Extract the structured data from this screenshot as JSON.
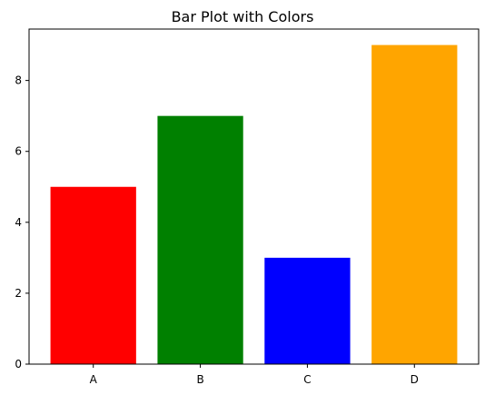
{
  "chart_data": {
    "type": "bar",
    "title": "Bar Plot with Colors",
    "categories": [
      "A",
      "B",
      "C",
      "D"
    ],
    "values": [
      5,
      7,
      3,
      9
    ],
    "colors": [
      "#ff0000",
      "#008000",
      "#0000ff",
      "#ffa500"
    ],
    "xlabel": "",
    "ylabel": "",
    "ylim": [
      0,
      9.45
    ],
    "yticks": [
      0,
      2,
      4,
      6,
      8
    ],
    "grid": false,
    "legend": "none"
  }
}
